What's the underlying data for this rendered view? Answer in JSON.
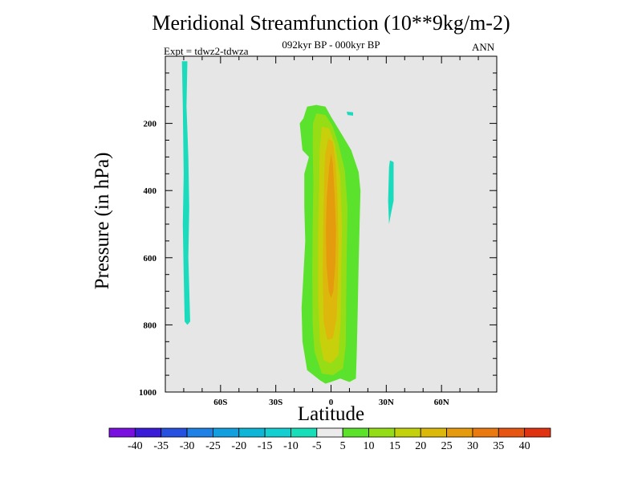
{
  "chart_data": {
    "type": "contour",
    "title": "Meridional Streamfunction (10**9kg/m-2)",
    "subtitle": "092kyr BP - 000kyr BP",
    "experiment": "Expt = tdwz2-tdwza",
    "season": "ANN",
    "xlabel": "Latitude",
    "ylabel": "Pressure (in hPa)",
    "xlim": [
      -90,
      90
    ],
    "ylim": [
      0,
      1000
    ],
    "y_inverted": true,
    "x_ticks": [
      {
        "value": -60,
        "label": "60S"
      },
      {
        "value": -30,
        "label": "30S"
      },
      {
        "value": 0,
        "label": "0"
      },
      {
        "value": 30,
        "label": "30N"
      },
      {
        "value": 60,
        "label": "60N"
      }
    ],
    "y_ticks": [
      {
        "value": 200,
        "label": "200"
      },
      {
        "value": 400,
        "label": "400"
      },
      {
        "value": 600,
        "label": "600"
      },
      {
        "value": 800,
        "label": "800"
      },
      {
        "value": 1000,
        "label": "1000"
      }
    ],
    "background_color": "#e6e6e6",
    "levels": [
      -40,
      -35,
      -30,
      -25,
      -20,
      -15,
      -10,
      -5,
      5,
      10,
      15,
      20,
      25,
      30,
      35,
      40
    ],
    "colorbar_colors": [
      "#7a10e0",
      "#3a1bd8",
      "#2650e0",
      "#1f80e6",
      "#129fdf",
      "#0db5d7",
      "#14cfd2",
      "#17deb8",
      "#ebebeb",
      "#5ce22a",
      "#94dc16",
      "#c3d10c",
      "#dcb80b",
      "#e69b0e",
      "#ea7a10",
      "#e65612",
      "#e03312"
    ],
    "contours": [
      {
        "level": "-10 to -5",
        "color": "#1adcbc",
        "points": [
          [
            -81,
            15
          ],
          [
            -78,
            15
          ],
          [
            -78.5,
            150
          ],
          [
            -77.5,
            300
          ],
          [
            -77,
            450
          ],
          [
            -77.5,
            600
          ],
          [
            -76.5,
            790
          ],
          [
            -78,
            800
          ],
          [
            -79.5,
            790
          ],
          [
            -80,
            650
          ],
          [
            -80.5,
            500
          ],
          [
            -80,
            350
          ],
          [
            -80.5,
            150
          ]
        ]
      },
      {
        "level": "-10 to -5",
        "color": "#1adcbc",
        "points": [
          [
            32,
            310
          ],
          [
            34,
            315
          ],
          [
            34,
            430
          ],
          [
            32.5,
            470
          ],
          [
            31.5,
            500
          ],
          [
            31,
            430
          ],
          [
            31.5,
            330
          ]
        ]
      },
      {
        "level": "-10 to -5",
        "color": "#1adcbc",
        "points": [
          [
            8.5,
            165
          ],
          [
            12,
            167
          ],
          [
            12,
            177
          ],
          [
            9,
            175
          ]
        ]
      },
      {
        "level": "5 to 10",
        "color": "#5ae22d",
        "points": [
          [
            -15,
            185
          ],
          [
            -13,
            150
          ],
          [
            -8,
            145
          ],
          [
            -3,
            150
          ],
          [
            0,
            180
          ],
          [
            5,
            225
          ],
          [
            11,
            280
          ],
          [
            15,
            345
          ],
          [
            16,
            400
          ],
          [
            15.5,
            500
          ],
          [
            15,
            620
          ],
          [
            14.5,
            750
          ],
          [
            14,
            880
          ],
          [
            13.5,
            960
          ],
          [
            10,
            970
          ],
          [
            5,
            960
          ],
          [
            1,
            968
          ],
          [
            -3,
            975
          ],
          [
            -6,
            965
          ],
          [
            -13,
            935
          ],
          [
            -15.5,
            850
          ],
          [
            -16,
            750
          ],
          [
            -15,
            650
          ],
          [
            -14,
            550
          ],
          [
            -14.5,
            450
          ],
          [
            -14.5,
            350
          ],
          [
            -12,
            300
          ],
          [
            -15.5,
            280
          ],
          [
            -17,
            200
          ]
        ]
      },
      {
        "level": "10 to 15",
        "color": "#96dd15",
        "points": [
          [
            -8,
            170
          ],
          [
            -3,
            175
          ],
          [
            1,
            210
          ],
          [
            4,
            260
          ],
          [
            7.5,
            340
          ],
          [
            9,
            450
          ],
          [
            8.5,
            600
          ],
          [
            8.2,
            750
          ],
          [
            8,
            860
          ],
          [
            6.5,
            930
          ],
          [
            1,
            950
          ],
          [
            -5,
            945
          ],
          [
            -9,
            880
          ],
          [
            -10,
            800
          ],
          [
            -10.2,
            650
          ],
          [
            -10,
            500
          ],
          [
            -9.6,
            380
          ],
          [
            -10,
            260
          ],
          [
            -9.8,
            200
          ]
        ]
      },
      {
        "level": "15 to 20",
        "color": "#c8d00c",
        "points": [
          [
            -5,
            210
          ],
          [
            -1,
            215
          ],
          [
            2,
            260
          ],
          [
            5,
            360
          ],
          [
            6,
            500
          ],
          [
            5.5,
            650
          ],
          [
            5.2,
            790
          ],
          [
            4,
            890
          ],
          [
            0,
            915
          ],
          [
            -4,
            905
          ],
          [
            -6,
            850
          ],
          [
            -7,
            720
          ],
          [
            -7,
            550
          ],
          [
            -6.5,
            400
          ],
          [
            -6.2,
            280
          ]
        ]
      },
      {
        "level": "20 to 25",
        "color": "#ddb70c",
        "points": [
          [
            -1.5,
            245
          ],
          [
            1,
            255
          ],
          [
            2.5,
            320
          ],
          [
            3.5,
            420
          ],
          [
            4,
            550
          ],
          [
            3.7,
            680
          ],
          [
            3,
            780
          ],
          [
            1,
            840
          ],
          [
            -2,
            845
          ],
          [
            -4,
            790
          ],
          [
            -4.5,
            650
          ],
          [
            -4.2,
            500
          ],
          [
            -3.8,
            370
          ],
          [
            -3.2,
            290
          ]
        ]
      },
      {
        "level": "25 to 30",
        "color": "#e49b0e",
        "points": [
          [
            0,
            290
          ],
          [
            1,
            320
          ],
          [
            2,
            420
          ],
          [
            2.7,
            520
          ],
          [
            2.3,
            620
          ],
          [
            1.2,
            700
          ],
          [
            0,
            720
          ],
          [
            -1.2,
            700
          ],
          [
            -2.5,
            620
          ],
          [
            -2.8,
            520
          ],
          [
            -2.3,
            420
          ],
          [
            -1,
            330
          ]
        ]
      }
    ]
  }
}
